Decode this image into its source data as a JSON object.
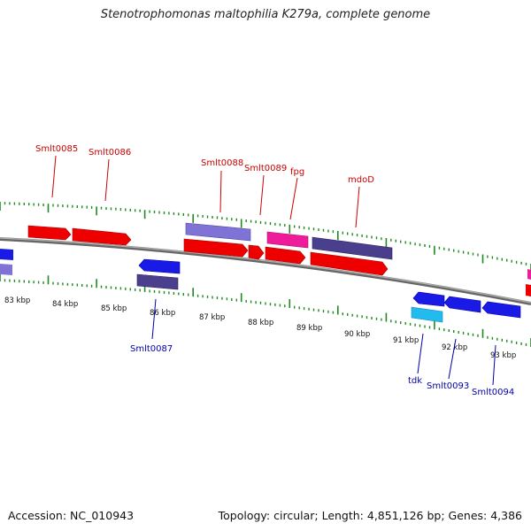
{
  "title": "Stenotrophomonas maltophilia K279a, complete genome",
  "footer": {
    "accession": "Accession: NC_010943",
    "summary": "Topology: circular; Length: 4,851,126 bp; Genes: 4,386"
  },
  "colors": {
    "forward_label": "#cc0000",
    "reverse_label": "#0000aa",
    "tick": "#1f8a1f",
    "backbone": "#888888"
  },
  "ticks": [
    "83 kbp",
    "84 kbp",
    "85 kbp",
    "86 kbp",
    "87 kbp",
    "88 kbp",
    "89 kbp",
    "90 kbp",
    "91 kbp",
    "92 kbp",
    "93 kbp"
  ],
  "gene_labels": [
    {
      "name": "Smlt0085",
      "strand": "forward"
    },
    {
      "name": "Smlt0086",
      "strand": "forward"
    },
    {
      "name": "Smlt0088",
      "strand": "forward"
    },
    {
      "name": "Smlt0089",
      "strand": "forward"
    },
    {
      "name": "fpg",
      "strand": "forward"
    },
    {
      "name": "mdoD",
      "strand": "forward"
    },
    {
      "name": "Smlt0087",
      "strand": "reverse"
    },
    {
      "name": "tdk",
      "strand": "reverse"
    },
    {
      "name": "Smlt0093",
      "strand": "reverse"
    },
    {
      "name": "Smlt0094",
      "strand": "reverse"
    }
  ]
}
